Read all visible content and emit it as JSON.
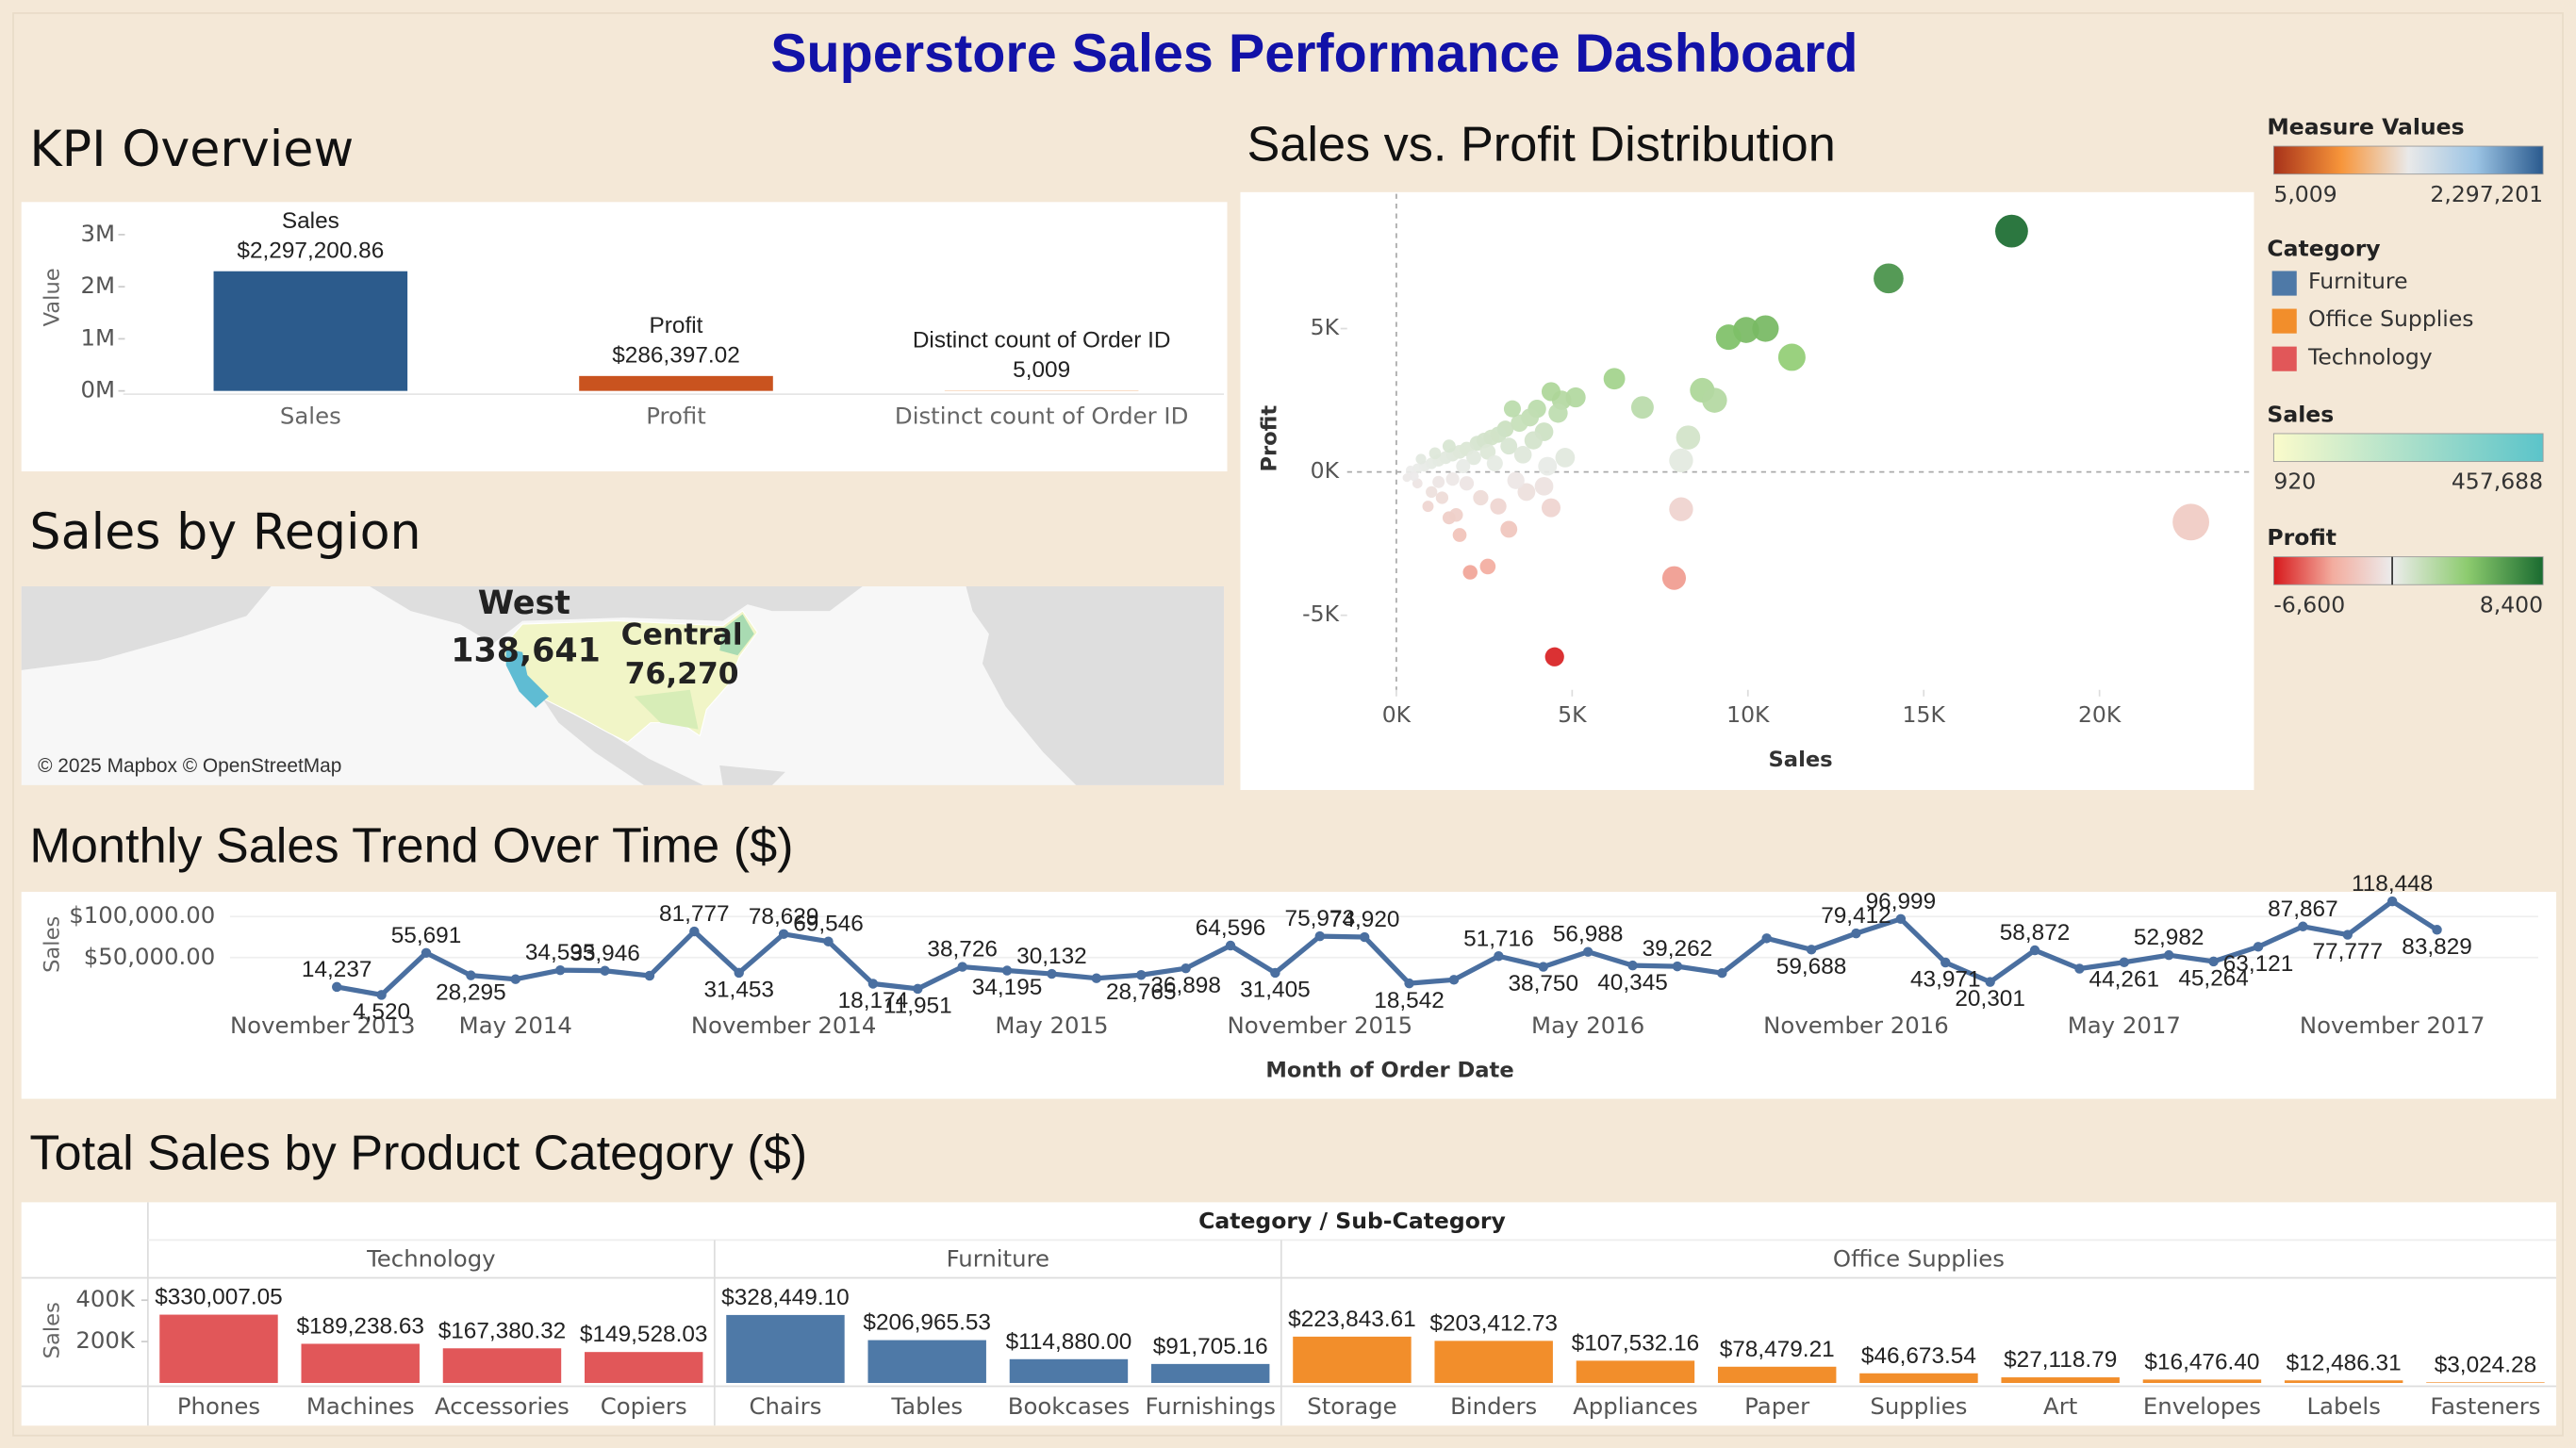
{
  "title": "Superstore Sales Performance Dashboard",
  "chart_data": [
    {
      "type": "bar",
      "title": "KPI Overview",
      "y_label": "Value",
      "categories": [
        "Sales",
        "Profit",
        "Distinct count of Order ID"
      ],
      "values": [
        2297200.86,
        286397.02,
        5009
      ],
      "value_labels": [
        "$2,297,200.86",
        "$286,397.02",
        "5,009"
      ],
      "colors": [
        "#2c5b8c",
        "#c9531f",
        "#e8893a"
      ],
      "ylim": [
        0,
        3500000
      ],
      "yticks": [
        {
          "value": 0,
          "label": "0M"
        },
        {
          "value": 1000000,
          "label": "1M"
        },
        {
          "value": 2000000,
          "label": "2M"
        },
        {
          "value": 3000000,
          "label": "3M"
        }
      ]
    },
    {
      "type": "scatter",
      "title": "Sales vs. Profit Distribution",
      "x_label": "Sales",
      "y_label": "Profit",
      "x": [
        17500,
        14000,
        10500,
        9950,
        9450,
        11250,
        8700,
        9050,
        7000,
        8300,
        8100,
        6200,
        5100,
        4700,
        4400,
        4600,
        4000,
        3800,
        3500,
        4200,
        3300,
        3900,
        4800,
        4300,
        3100,
        2900,
        2700,
        2500,
        3200,
        2300,
        2000,
        1800,
        1600,
        1400,
        1200,
        1000,
        800,
        600,
        400,
        2200,
        2600,
        1500,
        1100,
        3600,
        2800,
        1900,
        700,
        22600,
        8100,
        7900,
        4500,
        4400,
        3200,
        2600,
        2100,
        2900,
        1800,
        1500,
        3700,
        2400,
        1300,
        1000,
        600,
        300,
        2000,
        1600,
        4200,
        3400,
        500,
        1200,
        900,
        1700
      ],
      "values": [
        8400,
        6750,
        5000,
        4950,
        4700,
        4000,
        2850,
        2500,
        2250,
        1200,
        400,
        3250,
        2600,
        2500,
        2800,
        2050,
        2200,
        1900,
        1700,
        1400,
        2200,
        1100,
        500,
        200,
        1500,
        1300,
        1200,
        1100,
        900,
        1000,
        800,
        700,
        600,
        500,
        400,
        300,
        200,
        120,
        60,
        500,
        700,
        900,
        650,
        600,
        300,
        200,
        450,
        -1750,
        -1300,
        -3700,
        -6450,
        -1250,
        -2000,
        -3300,
        -3500,
        -1200,
        -2200,
        -1600,
        -700,
        -900,
        -900,
        -700,
        -400,
        -200,
        -400,
        -250,
        -500,
        -300,
        -150,
        -350,
        -1200,
        -1500
      ],
      "xlim": [
        -1400,
        24300
      ],
      "xticks": [
        {
          "value": 0,
          "label": "0K"
        },
        {
          "value": 5000,
          "label": "5K"
        },
        {
          "value": 10000,
          "label": "10K"
        },
        {
          "value": 15000,
          "label": "15K"
        },
        {
          "value": 20000,
          "label": "20K"
        }
      ],
      "ylim": [
        -7600,
        9700
      ],
      "yticks": [
        {
          "value": -5000,
          "label": "-5K"
        },
        {
          "value": 0,
          "label": "0K"
        },
        {
          "value": 5000,
          "label": "5K"
        }
      ]
    },
    {
      "type": "line",
      "title": "Monthly Sales Trend Over Time ($)",
      "x_label": "Month of Order Date",
      "y_label": "Sales",
      "color": "#4a6fa0",
      "grid": true,
      "x": [
        "2014-01",
        "2014-02",
        "2014-03",
        "2014-04",
        "2014-05",
        "2014-06",
        "2014-07",
        "2014-08",
        "2014-09",
        "2014-10",
        "2014-11",
        "2014-12",
        "2015-01",
        "2015-02",
        "2015-03",
        "2015-04",
        "2015-05",
        "2015-06",
        "2015-07",
        "2015-08",
        "2015-09",
        "2015-10",
        "2015-11",
        "2015-12",
        "2016-01",
        "2016-02",
        "2016-03",
        "2016-04",
        "2016-05",
        "2016-06",
        "2016-07",
        "2016-08",
        "2016-09",
        "2016-10",
        "2016-11",
        "2016-12",
        "2017-01",
        "2017-02",
        "2017-03",
        "2017-04",
        "2017-05",
        "2017-06",
        "2017-07",
        "2017-08",
        "2017-09",
        "2017-10",
        "2017-11",
        "2017-12"
      ],
      "values": [
        14237,
        4520,
        55691,
        28295,
        23648,
        34595,
        33946,
        27909,
        81777,
        31453,
        78629,
        69546,
        18174,
        11951,
        38726,
        34195,
        30132,
        24797,
        28765,
        36898,
        64596,
        31405,
        75973,
        74920,
        18542,
        22979,
        51716,
        38750,
        56988,
        40345,
        39262,
        31115,
        73410,
        59688,
        79412,
        96999,
        43971,
        20301,
        58872,
        36522,
        44261,
        52982,
        45264,
        63121,
        87867,
        77777,
        118448,
        83829
      ],
      "value_labels": [
        "14,237",
        "4,520",
        "55,691",
        "28,295",
        null,
        "34,595",
        "33,946",
        null,
        "81,777",
        "31,453",
        "78,629",
        "69,546",
        "18,174",
        "11,951",
        "38,726",
        "34,195",
        "30,132",
        null,
        "28,765",
        "36,898",
        "64,596",
        "31,405",
        "75,973",
        "74,920",
        "18,542",
        null,
        "51,716",
        "38,750",
        "56,988",
        "40,345",
        "39,262",
        null,
        null,
        "59,688",
        "79,412",
        "96,999",
        "43,971",
        "20,301",
        "58,872",
        null,
        "44,261",
        "52,982",
        "45,264",
        "63,121",
        "87,867",
        "77,777",
        "118,448",
        "83,829"
      ],
      "ylim": [
        0,
        120000
      ],
      "yticks": [
        {
          "value": 50000,
          "label": "$50,000.00"
        },
        {
          "value": 100000,
          "label": "$100,000.00"
        }
      ],
      "xticks": [
        {
          "value": "2013-11",
          "label": "November 2013"
        },
        {
          "value": "2014-05",
          "label": "May 2014"
        },
        {
          "value": "2014-11",
          "label": "November 2014"
        },
        {
          "value": "2015-05",
          "label": "May 2015"
        },
        {
          "value": "2015-11",
          "label": "November 2015"
        },
        {
          "value": "2016-05",
          "label": "May 2016"
        },
        {
          "value": "2016-11",
          "label": "November 2016"
        },
        {
          "value": "2017-05",
          "label": "May 2017"
        },
        {
          "value": "2017-11",
          "label": "November 2017"
        }
      ]
    },
    {
      "type": "grouped_bar",
      "title": "Total Sales by Product Category ($)",
      "header": "Category / Sub-Category",
      "y_label": "Sales",
      "ylim": [
        0,
        500000
      ],
      "yticks": [
        {
          "value": 200000,
          "label": "200K"
        },
        {
          "value": 400000,
          "label": "400K"
        }
      ],
      "groups": [
        {
          "name": "Technology",
          "color": "#e15759",
          "categories": [
            "Phones",
            "Machines",
            "Accessories",
            "Copiers"
          ],
          "values": [
            330007.05,
            189238.63,
            167380.32,
            149528.03
          ],
          "value_labels": [
            "$330,007.05",
            "$189,238.63",
            "$167,380.32",
            "$149,528.03"
          ]
        },
        {
          "name": "Furniture",
          "color": "#4e79a7",
          "categories": [
            "Chairs",
            "Tables",
            "Bookcases",
            "Furnishings"
          ],
          "values": [
            328449.1,
            206965.53,
            114880.0,
            91705.16
          ],
          "value_labels": [
            "$328,449.10",
            "$206,965.53",
            "$114,880.00",
            "$91,705.16"
          ]
        },
        {
          "name": "Office Supplies",
          "color": "#f28e2b",
          "categories": [
            "Storage",
            "Binders",
            "Appliances",
            "Paper",
            "Supplies",
            "Art",
            "Envelopes",
            "Labels",
            "Fasteners"
          ],
          "values": [
            223843.61,
            203412.73,
            107532.16,
            78479.21,
            46673.54,
            27118.79,
            16476.4,
            12486.31,
            3024.28
          ],
          "value_labels": [
            "$223,843.61",
            "$203,412.73",
            "$107,532.16",
            "$78,479.21",
            "$46,673.54",
            "$27,118.79",
            "$16,476.40",
            "$12,486.31",
            "$3,024.28"
          ]
        }
      ]
    }
  ],
  "map": {
    "title": "Sales by Region",
    "labels": [
      {
        "name": "West",
        "value": "138,641"
      },
      {
        "name": "Central",
        "value": "76,270"
      }
    ],
    "attribution": "© 2025 Mapbox © OpenStreetMap"
  },
  "legends": {
    "measure_values": {
      "title": "Measure Values",
      "colors": [
        "#a8321a",
        "#f7953a",
        "#e9e9e9",
        "#9cc4e4",
        "#2a5a8e"
      ],
      "ticks": [
        {
          "value": 5009,
          "label": "5,009"
        },
        {
          "value": 2297201,
          "label": "2,297,201"
        }
      ]
    },
    "category": {
      "title": "Category",
      "items": [
        {
          "name": "Furniture",
          "color": "#4e79a7"
        },
        {
          "name": "Office Supplies",
          "color": "#f28e2b"
        },
        {
          "name": "Technology",
          "color": "#e15759"
        }
      ]
    },
    "sales": {
      "title": "Sales",
      "colors": [
        "#fbfbcb",
        "#5bc4ca"
      ],
      "ticks": [
        {
          "value": 920,
          "label": "920"
        },
        {
          "value": 457688,
          "label": "457,688"
        }
      ]
    },
    "profit": {
      "title": "Profit",
      "colors": [
        "#d7191c",
        "#f3ad9f",
        "#ececec",
        "#8ccb6e",
        "#1a6b30"
      ],
      "ticks": [
        {
          "value": -6600,
          "label": "-6,600"
        },
        {
          "value": 8400,
          "label": "8,400"
        }
      ]
    }
  }
}
